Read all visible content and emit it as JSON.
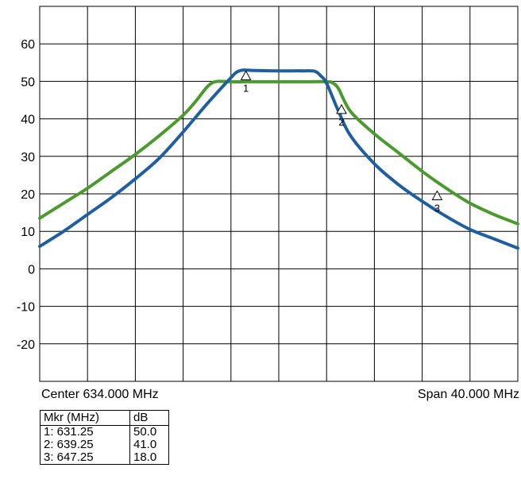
{
  "chart_data": {
    "type": "line",
    "y_ticks": [
      "60",
      "50",
      "40",
      "30",
      "20",
      "10",
      "0",
      "-10",
      "-20"
    ],
    "ylim": [
      -30,
      70
    ],
    "xlim": [
      614.0,
      654.0
    ],
    "grid": true,
    "series": [
      {
        "color": "#4a9a2e",
        "x": [
          614,
          616,
          618,
          620,
          622,
          624,
          626,
          627,
          628,
          628.5,
          629,
          630,
          632,
          634,
          636,
          638,
          638.5,
          639,
          640,
          642,
          644,
          646,
          648,
          650,
          652,
          654
        ],
        "y": [
          13.5,
          17.5,
          21.5,
          26,
          30.5,
          35.5,
          41,
          44.5,
          48.5,
          49.7,
          50,
          49.9,
          49.9,
          49.9,
          49.9,
          49.9,
          49.6,
          48,
          42,
          36,
          31,
          26,
          21.5,
          17.5,
          14.5,
          12
        ]
      },
      {
        "color": "#1f5fa0",
        "x": [
          614,
          616,
          618,
          620,
          622,
          624,
          626,
          628,
          630,
          630.5,
          631,
          632,
          634,
          636,
          637,
          637.5,
          638,
          639,
          640,
          642,
          644,
          646,
          648,
          650,
          652,
          654
        ],
        "y": [
          6,
          10,
          14.5,
          19,
          24,
          29.5,
          36.5,
          44,
          51,
          52.5,
          53,
          52.9,
          52.8,
          52.8,
          52.7,
          51.5,
          49.5,
          42,
          35.5,
          28,
          22.5,
          18,
          14,
          10.5,
          8,
          5.5
        ]
      }
    ],
    "markers": [
      {
        "label": "1",
        "x": 631.25,
        "y": 50.0
      },
      {
        "label": "2",
        "x": 639.25,
        "y": 41.0
      },
      {
        "label": "3",
        "x": 647.25,
        "y": 18.0
      }
    ]
  },
  "footer": {
    "center": "Center 634.000 MHz",
    "span": "Span 40.000 MHz"
  },
  "marker_table": {
    "header": [
      "Mkr (MHz)",
      "dB"
    ],
    "rows": [
      [
        "1: 631.25",
        "50.0"
      ],
      [
        "2: 639.25",
        "41.0"
      ],
      [
        "3: 647.25",
        "18.0"
      ]
    ]
  }
}
